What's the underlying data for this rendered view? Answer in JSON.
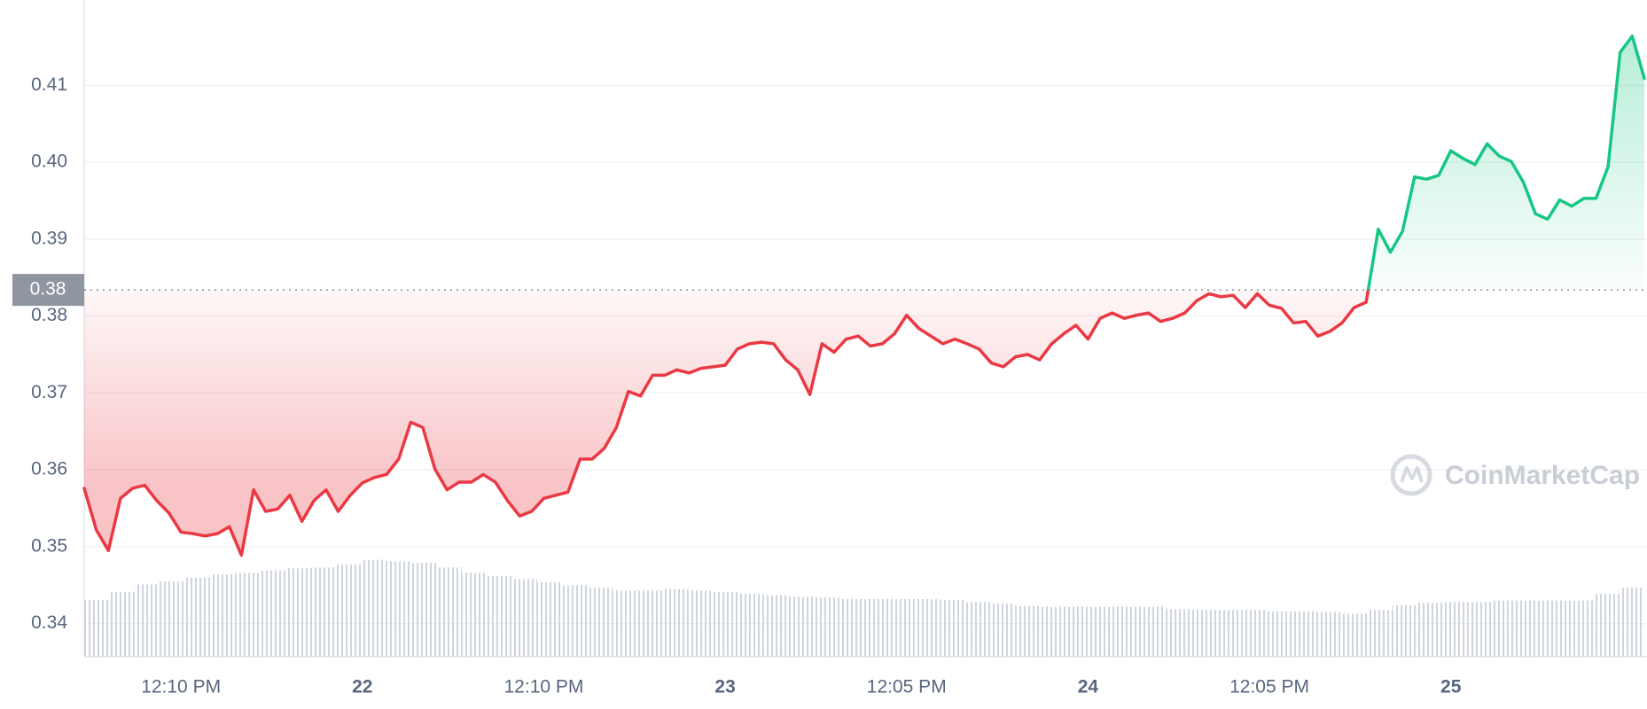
{
  "chart_data": {
    "type": "line",
    "categories": [
      null,
      null,
      null,
      null,
      null,
      null,
      null,
      null,
      "12:10 PM",
      null,
      null,
      null,
      null,
      null,
      null,
      null,
      null,
      null,
      null,
      null,
      null,
      null,
      null,
      "22",
      null,
      null,
      null,
      null,
      null,
      null,
      null,
      null,
      null,
      null,
      null,
      null,
      null,
      null,
      "12:10 PM",
      null,
      null,
      null,
      null,
      null,
      null,
      null,
      null,
      null,
      null,
      null,
      null,
      null,
      null,
      "23",
      null,
      null,
      null,
      null,
      null,
      null,
      null,
      null,
      null,
      null,
      null,
      null,
      null,
      null,
      "12:05 PM",
      null,
      null,
      null,
      null,
      null,
      null,
      null,
      null,
      null,
      null,
      null,
      null,
      null,
      null,
      "24",
      null,
      null,
      null,
      null,
      null,
      null,
      null,
      null,
      null,
      null,
      null,
      null,
      null,
      null,
      "12:05 PM",
      null,
      null,
      null,
      null,
      null,
      null,
      null,
      null,
      null,
      null,
      null,
      null,
      null,
      null,
      "25",
      null,
      null,
      null,
      null,
      null,
      null,
      null,
      null,
      null,
      null,
      null,
      null,
      null,
      null,
      null,
      null
    ],
    "values": [
      0.3576,
      0.3522,
      0.3495,
      0.3563,
      0.3576,
      0.358,
      0.356,
      0.3544,
      0.3519,
      0.3517,
      0.3514,
      0.3517,
      0.3526,
      0.3489,
      0.3574,
      0.3546,
      0.3549,
      0.3567,
      0.3533,
      0.356,
      0.3574,
      0.3546,
      0.3567,
      0.3583,
      0.359,
      0.3594,
      0.3614,
      0.3662,
      0.3655,
      0.3601,
      0.3574,
      0.3584,
      0.3584,
      0.3594,
      0.3584,
      0.356,
      0.354,
      0.3546,
      0.3563,
      0.3567,
      0.3571,
      0.3614,
      0.3614,
      0.3628,
      0.3655,
      0.3702,
      0.3696,
      0.3723,
      0.3723,
      0.373,
      0.3726,
      0.3732,
      0.3734,
      0.3736,
      0.3757,
      0.3764,
      0.3766,
      0.3764,
      0.3743,
      0.373,
      0.3698,
      0.3764,
      0.3753,
      0.377,
      0.3774,
      0.3761,
      0.3764,
      0.3777,
      0.3801,
      0.3784,
      0.3774,
      0.3764,
      0.377,
      0.3764,
      0.3757,
      0.3739,
      0.3734,
      0.3747,
      0.375,
      0.3743,
      0.3764,
      0.3777,
      0.3788,
      0.377,
      0.3797,
      0.3804,
      0.3797,
      0.3801,
      0.3804,
      0.3793,
      0.3797,
      0.3804,
      0.382,
      0.3829,
      0.3825,
      0.3827,
      0.3811,
      0.3829,
      0.3814,
      0.381,
      0.3791,
      0.3793,
      0.3774,
      0.378,
      0.3791,
      0.3811,
      0.3818,
      0.3913,
      0.3883,
      0.391,
      0.3981,
      0.3978,
      0.3983,
      0.4015,
      0.4005,
      0.3997,
      0.4024,
      0.4008,
      0.4001,
      0.3974,
      0.3933,
      0.3926,
      0.3951,
      0.3943,
      0.3953,
      0.3953,
      0.3994,
      0.4143,
      0.4164,
      0.4109
    ],
    "color_up": "#16c784",
    "color_down": "#ea3943",
    "baseline": {
      "value": 0.3834,
      "label": "0.38"
    },
    "volume": {
      "color": "#cfd5df",
      "values": [
        0.3431,
        0.3441,
        0.3451,
        0.3455,
        0.346,
        0.3464,
        0.3466,
        0.3469,
        0.3472,
        0.3473,
        0.3477,
        0.3483,
        0.3481,
        0.3479,
        0.3473,
        0.3466,
        0.3462,
        0.3458,
        0.3454,
        0.345,
        0.3447,
        0.3443,
        0.3443,
        0.3445,
        0.3443,
        0.3441,
        0.3439,
        0.3437,
        0.3435,
        0.3434,
        0.3432,
        0.3432,
        0.3432,
        0.3432,
        0.3431,
        0.3428,
        0.3426,
        0.3423,
        0.3422,
        0.3422,
        0.3422,
        0.3422,
        0.3422,
        0.3419,
        0.3418,
        0.3418,
        0.3418,
        0.3416,
        0.3416,
        0.3415,
        0.3413,
        0.3418,
        0.3424,
        0.3427,
        0.3428,
        0.3428,
        0.343,
        0.343,
        0.343,
        0.343,
        0.3439,
        0.3447
      ]
    },
    "ylim": [
      0.3357,
      0.4211
    ],
    "yticks": [
      0.34,
      0.35,
      0.36,
      0.37,
      0.38,
      0.39,
      {
        "value": 0.4,
        "label": "0.40"
      },
      0.41
    ],
    "grid": true,
    "watermark": "CoinMarketCap"
  }
}
